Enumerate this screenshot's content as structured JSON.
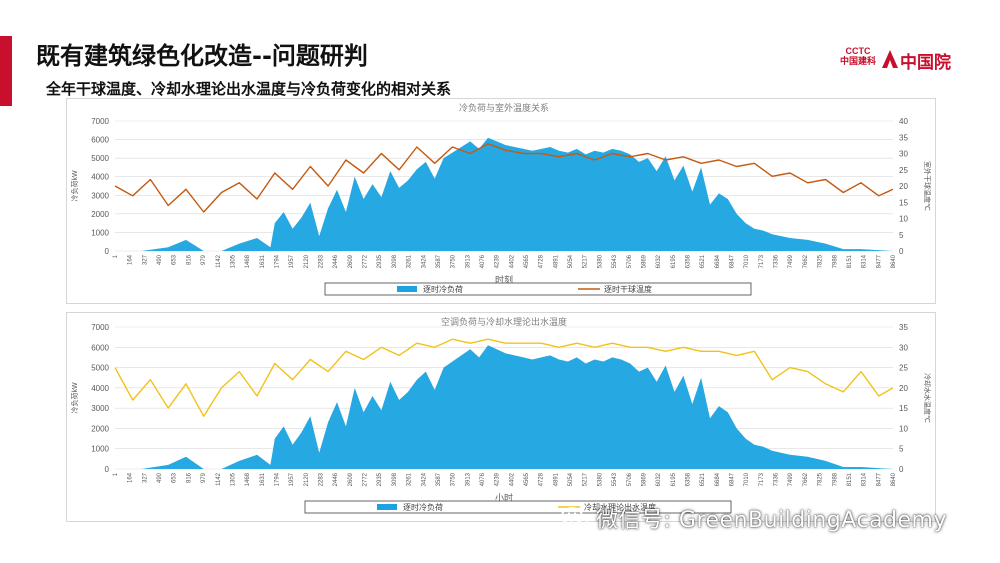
{
  "slide": {
    "title": "既有建筑绿色化改造--问题研判",
    "subtitle": "全年干球温度、冷却水理论出水温度与冷负荷变化的相对关系"
  },
  "logo": {
    "small_top": "CCTC",
    "small_bottom": "中国建科",
    "name": "中国院",
    "color": "#c8102e"
  },
  "watermark": {
    "text": "微信号: GreenBuildingAcademy",
    "icon": "wechat-icon"
  },
  "colors": {
    "load": "#1aa3e0",
    "dry_bulb": "#c55a11",
    "cooling_water": "#f2c21b",
    "grid": "#d9d9d9",
    "axis_text": "#595959"
  },
  "chart_data": [
    {
      "type": "area",
      "title": "冷负荷与室外温度关系",
      "xlabel": "时刻",
      "ylabel_left": "冷负荷kW",
      "ylabel_right": "室外干球温度℃",
      "ylim_left": [
        0,
        7000
      ],
      "yticks_left": [
        0,
        1000,
        2000,
        3000,
        4000,
        5000,
        6000,
        7000
      ],
      "ylim_right": [
        0,
        40
      ],
      "yticks_right": [
        0,
        5,
        10,
        15,
        20,
        25,
        30,
        35,
        40
      ],
      "xlim": [
        1,
        8760
      ],
      "x_tick_labels": [
        "1",
        "164",
        "327",
        "490",
        "653",
        "816",
        "979",
        "1142",
        "1305",
        "1468",
        "1631",
        "1794",
        "1957",
        "2120",
        "2283",
        "2446",
        "2609",
        "2772",
        "2935",
        "3098",
        "3261",
        "3424",
        "3587",
        "3750",
        "3913",
        "4076",
        "4239",
        "4402",
        "4565",
        "4728",
        "4891",
        "5054",
        "5217",
        "5380",
        "5543",
        "5706",
        "5869",
        "6032",
        "6195",
        "6358",
        "6521",
        "6684",
        "6847",
        "7010",
        "7173",
        "7336",
        "7499",
        "7662",
        "7825",
        "7988",
        "8151",
        "8314",
        "8477",
        "8640"
      ],
      "series": [
        {
          "name": "逐时冷负荷",
          "kind": "area",
          "axis": "left",
          "x": [
            1,
            300,
            600,
            800,
            1000,
            1200,
            1400,
            1600,
            1750,
            1800,
            1900,
            2000,
            2100,
            2200,
            2300,
            2400,
            2500,
            2600,
            2700,
            2800,
            2900,
            3000,
            3100,
            3200,
            3300,
            3400,
            3500,
            3600,
            3700,
            3800,
            3900,
            4000,
            4100,
            4200,
            4300,
            4400,
            4500,
            4600,
            4700,
            4800,
            4900,
            5000,
            5100,
            5200,
            5300,
            5400,
            5500,
            5600,
            5700,
            5800,
            5900,
            6000,
            6100,
            6200,
            6300,
            6400,
            6500,
            6600,
            6700,
            6800,
            6900,
            7000,
            7100,
            7200,
            7300,
            7400,
            7600,
            7800,
            8000,
            8200,
            8400,
            8760
          ],
          "y": [
            0,
            0,
            200,
            600,
            0,
            0,
            400,
            700,
            200,
            1500,
            2100,
            1200,
            1800,
            2600,
            800,
            2300,
            3300,
            2100,
            4000,
            2800,
            3600,
            2900,
            4300,
            3400,
            3800,
            4400,
            4800,
            3900,
            5000,
            5300,
            5600,
            5900,
            5500,
            6100,
            5900,
            5700,
            5600,
            5500,
            5400,
            5500,
            5600,
            5400,
            5300,
            5500,
            5200,
            5400,
            5300,
            5500,
            5400,
            5200,
            4800,
            5000,
            4300,
            5100,
            3800,
            4600,
            3200,
            4500,
            2500,
            3100,
            2800,
            2000,
            1500,
            1200,
            1100,
            900,
            700,
            600,
            400,
            100,
            100,
            0
          ],
          "color": "#1aa3e0"
        },
        {
          "name": "逐时干球温度",
          "kind": "line",
          "axis": "right",
          "x": [
            1,
            200,
            400,
            600,
            800,
            1000,
            1200,
            1400,
            1600,
            1800,
            2000,
            2200,
            2400,
            2600,
            2800,
            3000,
            3200,
            3400,
            3600,
            3800,
            4000,
            4200,
            4400,
            4600,
            4800,
            5000,
            5200,
            5400,
            5600,
            5800,
            6000,
            6200,
            6400,
            6600,
            6800,
            7000,
            7200,
            7400,
            7600,
            7800,
            8000,
            8200,
            8400,
            8600,
            8760
          ],
          "y": [
            20,
            17,
            22,
            14,
            19,
            12,
            18,
            21,
            16,
            24,
            19,
            26,
            20,
            28,
            24,
            30,
            25,
            32,
            27,
            32,
            30,
            33,
            31,
            30,
            30,
            29,
            30,
            28,
            30,
            29,
            30,
            28,
            29,
            27,
            28,
            26,
            27,
            23,
            24,
            21,
            22,
            18,
            21,
            17,
            19
          ],
          "color": "#c55a11"
        }
      ],
      "legend": "bottom"
    },
    {
      "type": "area",
      "title": "空调负荷与冷却水理论出水温度",
      "xlabel": "小时",
      "ylabel_left": "冷负荷kW",
      "ylabel_right": "冷却水水温度℃",
      "ylim_left": [
        0,
        7000
      ],
      "yticks_left": [
        0,
        1000,
        2000,
        3000,
        4000,
        5000,
        6000,
        7000
      ],
      "ylim_right": [
        0,
        35
      ],
      "yticks_right": [
        0,
        5,
        10,
        15,
        20,
        25,
        30,
        35
      ],
      "xlim": [
        1,
        8760
      ],
      "x_tick_labels": [
        "1",
        "164",
        "327",
        "490",
        "653",
        "816",
        "979",
        "1142",
        "1305",
        "1468",
        "1631",
        "1794",
        "1957",
        "2120",
        "2283",
        "2446",
        "2609",
        "2772",
        "2935",
        "3098",
        "3261",
        "3424",
        "3587",
        "3750",
        "3913",
        "4076",
        "4239",
        "4402",
        "4565",
        "4728",
        "4891",
        "5054",
        "5217",
        "5380",
        "5543",
        "5706",
        "5869",
        "6032",
        "6195",
        "6358",
        "6521",
        "6684",
        "6847",
        "7010",
        "7173",
        "7336",
        "7499",
        "7662",
        "7825",
        "7988",
        "8151",
        "8314",
        "8477",
        "8640"
      ],
      "series": [
        {
          "name": "逐时冷负荷",
          "kind": "area",
          "axis": "left",
          "x": [
            1,
            300,
            600,
            800,
            1000,
            1200,
            1400,
            1600,
            1750,
            1800,
            1900,
            2000,
            2100,
            2200,
            2300,
            2400,
            2500,
            2600,
            2700,
            2800,
            2900,
            3000,
            3100,
            3200,
            3300,
            3400,
            3500,
            3600,
            3700,
            3800,
            3900,
            4000,
            4100,
            4200,
            4300,
            4400,
            4500,
            4600,
            4700,
            4800,
            4900,
            5000,
            5100,
            5200,
            5300,
            5400,
            5500,
            5600,
            5700,
            5800,
            5900,
            6000,
            6100,
            6200,
            6300,
            6400,
            6500,
            6600,
            6700,
            6800,
            6900,
            7000,
            7100,
            7200,
            7300,
            7400,
            7600,
            7800,
            8000,
            8200,
            8400,
            8760
          ],
          "y": [
            0,
            0,
            200,
            600,
            0,
            0,
            400,
            700,
            200,
            1500,
            2100,
            1200,
            1800,
            2600,
            800,
            2300,
            3300,
            2100,
            4000,
            2800,
            3600,
            2900,
            4300,
            3400,
            3800,
            4400,
            4800,
            3900,
            5000,
            5300,
            5600,
            5900,
            5500,
            6100,
            5900,
            5700,
            5600,
            5500,
            5400,
            5500,
            5600,
            5400,
            5300,
            5500,
            5200,
            5400,
            5300,
            5500,
            5400,
            5200,
            4800,
            5000,
            4300,
            5100,
            3800,
            4600,
            3200,
            4500,
            2500,
            3100,
            2800,
            2000,
            1500,
            1200,
            1100,
            900,
            700,
            600,
            400,
            100,
            100,
            0
          ],
          "color": "#1aa3e0"
        },
        {
          "name": "冷却水理论出水温度",
          "kind": "line",
          "axis": "right",
          "x": [
            1,
            200,
            400,
            600,
            800,
            1000,
            1200,
            1400,
            1600,
            1800,
            2000,
            2200,
            2400,
            2600,
            2800,
            3000,
            3200,
            3400,
            3600,
            3800,
            4000,
            4200,
            4400,
            4600,
            4800,
            5000,
            5200,
            5400,
            5600,
            5800,
            6000,
            6200,
            6400,
            6600,
            6800,
            7000,
            7200,
            7400,
            7600,
            7800,
            8000,
            8200,
            8400,
            8600,
            8760
          ],
          "y": [
            25,
            17,
            22,
            15,
            21,
            13,
            20,
            24,
            18,
            26,
            22,
            27,
            24,
            29,
            27,
            30,
            28,
            31,
            30,
            32,
            31,
            32,
            31,
            31,
            31,
            30,
            31,
            30,
            31,
            30,
            30,
            29,
            30,
            29,
            29,
            28,
            29,
            22,
            25,
            24,
            21,
            19,
            24,
            18,
            20
          ],
          "color": "#f2c21b"
        }
      ],
      "legend": "bottom"
    }
  ]
}
